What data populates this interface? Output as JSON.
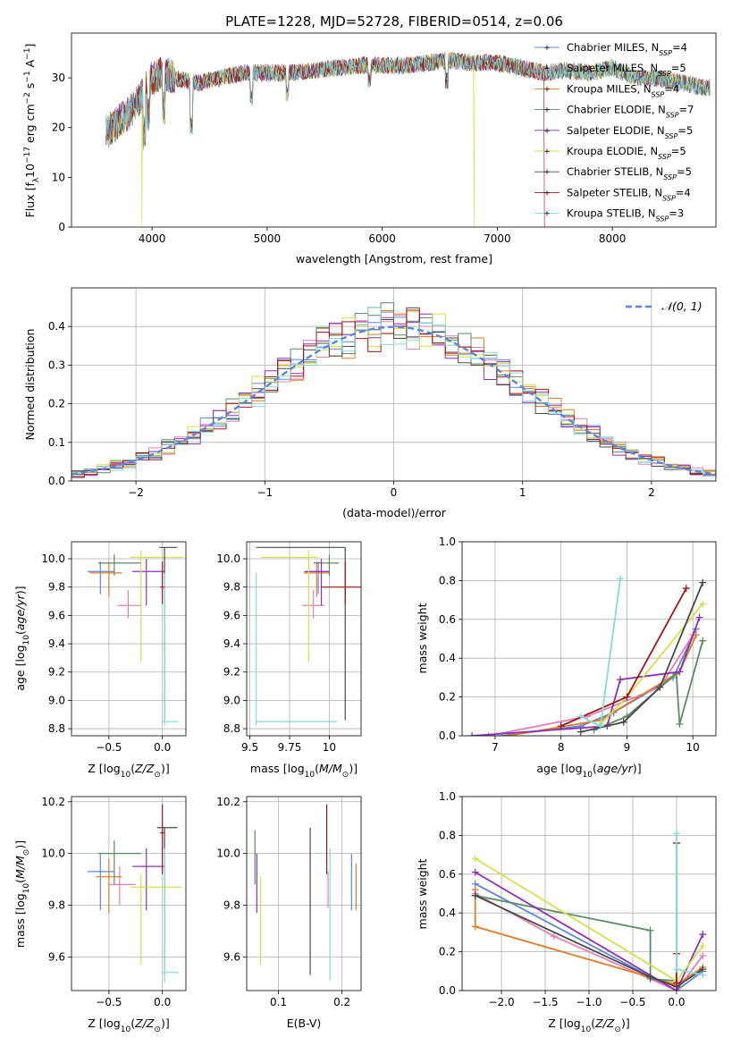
{
  "colors": {
    "Chabrier MILES": "#5b86d9",
    "Salpeter MILES": "#e37fb6",
    "Kroupa MILES": "#e07b26",
    "Chabrier ELODIE": "#5c8a60",
    "Salpeter ELODIE": "#8f2fb5",
    "Kroupa ELODIE": "#d4e04a",
    "Chabrier STELIB": "#4a4a4a",
    "Salpeter STELIB": "#a51414",
    "Kroupa STELIB": "#86dada"
  },
  "chart_data": [
    {
      "id": "spectrum",
      "type": "line",
      "title": "PLATE=1228, MJD=52728, FIBERID=0514, z=0.06",
      "xlabel": "wavelength [Angstrom, rest frame]",
      "ylabel": "Flux [fλ10⁻¹⁷ erg cm⁻² s⁻¹ A⁻¹]",
      "xlim": [
        3300,
        8900
      ],
      "ylim": [
        0,
        39
      ],
      "xticks": [
        4000,
        5000,
        6000,
        7000,
        8000
      ],
      "yticks": [
        0,
        10,
        20,
        30
      ],
      "grid": false,
      "legend_position": "top-right",
      "series": [
        {
          "name": "Chabrier MILES, N",
          "sub": "SSP",
          "tail": "=4"
        },
        {
          "name": "Salpeter MILES, N",
          "sub": "SSP",
          "tail": "=5"
        },
        {
          "name": "Kroupa MILES, N",
          "sub": "SSP",
          "tail": "=4"
        },
        {
          "name": "Chabrier ELODIE, N",
          "sub": "SSP",
          "tail": "=7"
        },
        {
          "name": "Salpeter ELODIE, N",
          "sub": "SSP",
          "tail": "=5"
        },
        {
          "name": "Kroupa ELODIE, N",
          "sub": "SSP",
          "tail": "=5"
        },
        {
          "name": "Chabrier STELIB, N",
          "sub": "SSP",
          "tail": "=5"
        },
        {
          "name": "Salpeter STELIB, N",
          "sub": "SSP",
          "tail": "=4"
        },
        {
          "name": "Kroupa STELIB, N",
          "sub": "SSP",
          "tail": "=3"
        }
      ],
      "continuum": [
        [
          3600,
          19
        ],
        [
          3700,
          21
        ],
        [
          3800,
          23
        ],
        [
          3900,
          26
        ],
        [
          4000,
          30
        ],
        [
          4100,
          31
        ],
        [
          4200,
          30
        ],
        [
          4400,
          29
        ],
        [
          4600,
          30
        ],
        [
          4800,
          31
        ],
        [
          5000,
          31
        ],
        [
          5200,
          31
        ],
        [
          5400,
          31.5
        ],
        [
          5600,
          32
        ],
        [
          5800,
          32.5
        ],
        [
          6000,
          32.5
        ],
        [
          6200,
          32.5
        ],
        [
          6400,
          33
        ],
        [
          6600,
          33.5
        ],
        [
          6800,
          33
        ],
        [
          7000,
          33
        ],
        [
          7200,
          32
        ],
        [
          7400,
          31
        ],
        [
          7600,
          31.5
        ],
        [
          7800,
          31
        ],
        [
          8000,
          32
        ],
        [
          8200,
          30
        ],
        [
          8400,
          30
        ],
        [
          8600,
          29
        ],
        [
          8800,
          28
        ]
      ]
    },
    {
      "id": "residuals",
      "type": "histogram",
      "xlabel": "(data-model)/error",
      "ylabel": "Normed distribution",
      "xlim": [
        -2.5,
        2.5
      ],
      "ylim": [
        0,
        0.5
      ],
      "xticks": [
        -2,
        -1,
        0,
        1,
        2
      ],
      "yticks": [
        0.0,
        0.1,
        0.2,
        0.3,
        0.4
      ],
      "grid": true,
      "legend_position": "top-right",
      "reference_curve": {
        "name": "𝒩(0, 1)",
        "mean": 0,
        "sigma": 1,
        "color": "#5b86d9"
      }
    },
    {
      "id": "age-z",
      "type": "errorbar",
      "xlabel": "Z [log₁₀(Z/Z⊙)]",
      "ylabel": "age  [log₁₀(age/yr)]",
      "xlim": [
        -0.85,
        0.22
      ],
      "ylim": [
        8.75,
        10.12
      ],
      "xticks": [
        -0.5,
        0.0
      ],
      "yticks": [
        8.8,
        9.0,
        9.2,
        9.4,
        9.6,
        9.8,
        10.0
      ],
      "grid": true,
      "points": [
        {
          "c": "Chabrier MILES",
          "x": -0.58,
          "xlo": -0.7,
          "xhi": -0.45,
          "y": 9.91,
          "ylo": 9.75,
          "yhi": 9.98
        },
        {
          "c": "Salpeter MILES",
          "x": -0.32,
          "xlo": -0.42,
          "xhi": -0.2,
          "y": 9.67,
          "ylo": 9.58,
          "yhi": 9.78
        },
        {
          "c": "Kroupa MILES",
          "x": -0.5,
          "xlo": -0.68,
          "xhi": -0.38,
          "y": 9.9,
          "ylo": 9.73,
          "yhi": 9.98
        },
        {
          "c": "Chabrier ELODIE",
          "x": -0.45,
          "xlo": -0.6,
          "xhi": -0.2,
          "y": 9.97,
          "ylo": 9.88,
          "yhi": 10.03
        },
        {
          "c": "Salpeter ELODIE",
          "x": -0.15,
          "xlo": -0.28,
          "xhi": 0.02,
          "y": 9.91,
          "ylo": 9.67,
          "yhi": 10.0
        },
        {
          "c": "Kroupa ELODIE",
          "x": -0.2,
          "xlo": -0.3,
          "xhi": 0.2,
          "y": 10.01,
          "ylo": 9.27,
          "yhi": 10.06
        },
        {
          "c": "Chabrier STELIB",
          "x": 0.02,
          "xlo": -0.03,
          "xhi": 0.14,
          "y": 10.08,
          "ylo": 8.86,
          "yhi": 10.08
        },
        {
          "c": "Salpeter STELIB",
          "x": 0.0,
          "xlo": -0.02,
          "xhi": 0.03,
          "y": 9.8,
          "ylo": 9.68,
          "yhi": 9.98
        },
        {
          "c": "Kroupa STELIB",
          "x": 0.02,
          "xlo": 0.0,
          "xhi": 0.15,
          "y": 8.85,
          "ylo": 8.82,
          "yhi": 9.9
        }
      ]
    },
    {
      "id": "age-mass",
      "type": "errorbar",
      "xlabel": "mass [log₁₀(M/M⊙)]",
      "xlim": [
        9.48,
        10.2
      ],
      "ylim": [
        8.75,
        10.12
      ],
      "xticks": [
        9.5,
        9.75,
        10.0
      ],
      "yticks": [
        8.8,
        9.0,
        9.2,
        9.4,
        9.6,
        9.8,
        10.0
      ],
      "grid": true,
      "points": [
        {
          "c": "Chabrier MILES",
          "x": 9.93,
          "xlo": 9.84,
          "xhi": 10.0,
          "y": 9.91,
          "ylo": 9.75,
          "yhi": 9.98
        },
        {
          "c": "Salpeter MILES",
          "x": 9.9,
          "xlo": 9.83,
          "xhi": 9.97,
          "y": 9.67,
          "ylo": 9.58,
          "yhi": 9.78
        },
        {
          "c": "Kroupa MILES",
          "x": 9.92,
          "xlo": 9.84,
          "xhi": 10.0,
          "y": 9.9,
          "ylo": 9.73,
          "yhi": 9.98
        },
        {
          "c": "Chabrier ELODIE",
          "x": 10.0,
          "xlo": 9.9,
          "xhi": 10.06,
          "y": 9.97,
          "ylo": 9.88,
          "yhi": 10.03
        },
        {
          "c": "Salpeter ELODIE",
          "x": 9.95,
          "xlo": 9.85,
          "xhi": 10.0,
          "y": 9.91,
          "ylo": 9.67,
          "yhi": 10.0
        },
        {
          "c": "Kroupa ELODIE",
          "x": 9.87,
          "xlo": 9.57,
          "xhi": 9.93,
          "y": 10.01,
          "ylo": 9.27,
          "yhi": 10.06
        },
        {
          "c": "Chabrier STELIB",
          "x": 10.1,
          "xlo": 9.54,
          "xhi": 10.1,
          "y": 10.08,
          "ylo": 8.86,
          "yhi": 10.08
        },
        {
          "c": "Salpeter STELIB",
          "x": 10.1,
          "xlo": 9.95,
          "xhi": 10.2,
          "y": 9.8,
          "ylo": 9.68,
          "yhi": 9.98
        },
        {
          "c": "Kroupa STELIB",
          "x": 9.54,
          "xlo": 9.54,
          "xhi": 10.05,
          "y": 8.85,
          "ylo": 8.82,
          "yhi": 9.9
        }
      ]
    },
    {
      "id": "weight-age",
      "type": "line",
      "xlabel": "age  [log₁₀(age/yr)]",
      "ylabel": "mass weight",
      "xlim": [
        6.5,
        10.35
      ],
      "ylim": [
        0,
        1.0
      ],
      "xticks": [
        7,
        8,
        9,
        10
      ],
      "yticks": [
        0.0,
        0.2,
        0.4,
        0.6,
        0.8,
        1.0
      ],
      "grid": true,
      "series": [
        {
          "c": "Chabrier MILES",
          "points": [
            [
              7.1,
              0.0
            ],
            [
              8.3,
              0.05
            ],
            [
              8.8,
              0.12
            ],
            [
              9.7,
              0.3
            ],
            [
              10.05,
              0.55
            ]
          ]
        },
        {
          "c": "Salpeter MILES",
          "points": [
            [
              6.9,
              0.0
            ],
            [
              8.4,
              0.1
            ],
            [
              9.5,
              0.25
            ],
            [
              10.0,
              0.52
            ]
          ]
        },
        {
          "c": "Kroupa MILES",
          "points": [
            [
              7.2,
              0.0
            ],
            [
              8.6,
              0.08
            ],
            [
              9.8,
              0.33
            ],
            [
              10.05,
              0.52
            ]
          ]
        },
        {
          "c": "Chabrier ELODIE",
          "points": [
            [
              8.5,
              0.03
            ],
            [
              9.0,
              0.1
            ],
            [
              9.75,
              0.32
            ],
            [
              9.8,
              0.06
            ],
            [
              10.15,
              0.49
            ]
          ]
        },
        {
          "c": "Salpeter ELODIE",
          "points": [
            [
              6.65,
              0.0
            ],
            [
              8.7,
              0.05
            ],
            [
              8.9,
              0.29
            ],
            [
              9.8,
              0.33
            ],
            [
              10.1,
              0.61
            ]
          ]
        },
        {
          "c": "Kroupa ELODIE",
          "points": [
            [
              8.6,
              0.06
            ],
            [
              9.0,
              0.2
            ],
            [
              10.15,
              0.68
            ]
          ]
        },
        {
          "c": "Chabrier STELIB",
          "points": [
            [
              8.3,
              0.02
            ],
            [
              8.95,
              0.07
            ],
            [
              9.5,
              0.25
            ],
            [
              10.15,
              0.79
            ]
          ]
        },
        {
          "c": "Salpeter STELIB",
          "points": [
            [
              8.0,
              0.05
            ],
            [
              9.0,
              0.2
            ],
            [
              9.9,
              0.76
            ]
          ]
        },
        {
          "c": "Kroupa STELIB",
          "points": [
            [
              8.3,
              0.1
            ],
            [
              8.6,
              0.05
            ],
            [
              8.9,
              0.81
            ]
          ]
        }
      ]
    },
    {
      "id": "mass-z",
      "type": "errorbar",
      "xlabel": "Z [log₁₀(Z/Z⊙)]",
      "ylabel": "mass [log₁₀(M/M⊙)]",
      "xlim": [
        -0.85,
        0.22
      ],
      "ylim": [
        9.47,
        10.22
      ],
      "xticks": [
        -0.5,
        0.0
      ],
      "yticks": [
        9.6,
        9.8,
        10.0,
        10.2
      ],
      "grid": true,
      "points": [
        {
          "c": "Chabrier MILES",
          "x": -0.58,
          "xlo": -0.7,
          "xhi": -0.45,
          "y": 9.93,
          "ylo": 9.78,
          "yhi": 10.0
        },
        {
          "c": "Salpeter MILES",
          "x": -0.4,
          "xlo": -0.5,
          "xhi": -0.25,
          "y": 9.88,
          "ylo": 9.8,
          "yhi": 9.95
        },
        {
          "c": "Kroupa MILES",
          "x": -0.5,
          "xlo": -0.62,
          "xhi": -0.38,
          "y": 9.91,
          "ylo": 9.77,
          "yhi": 9.98
        },
        {
          "c": "Chabrier ELODIE",
          "x": -0.45,
          "xlo": -0.6,
          "xhi": -0.2,
          "y": 10.0,
          "ylo": 9.88,
          "yhi": 10.05
        },
        {
          "c": "Salpeter ELODIE",
          "x": -0.15,
          "xlo": -0.28,
          "xhi": 0.02,
          "y": 9.95,
          "ylo": 9.78,
          "yhi": 10.02
        },
        {
          "c": "Kroupa ELODIE",
          "x": -0.2,
          "xlo": -0.3,
          "xhi": 0.18,
          "y": 9.87,
          "ylo": 9.57,
          "yhi": 9.92
        },
        {
          "c": "Chabrier STELIB",
          "x": 0.02,
          "xlo": -0.05,
          "xhi": 0.14,
          "y": 10.1,
          "ylo": 9.53,
          "yhi": 10.1
        },
        {
          "c": "Salpeter STELIB",
          "x": 0.0,
          "xlo": -0.02,
          "xhi": 0.02,
          "y": 10.08,
          "ylo": 9.92,
          "yhi": 10.19
        },
        {
          "c": "Kroupa STELIB",
          "x": 0.02,
          "xlo": 0.0,
          "xhi": 0.15,
          "y": 9.54,
          "ylo": 9.5,
          "yhi": 10.02
        }
      ]
    },
    {
      "id": "mass-ebv",
      "type": "errorbar",
      "xlabel": "E(B-V)",
      "xlim": [
        0.05,
        0.23
      ],
      "ylim": [
        9.47,
        10.22
      ],
      "xticks": [
        0.1,
        0.2
      ],
      "yticks": [
        9.6,
        9.8,
        10.0,
        10.2
      ],
      "grid": true,
      "points": [
        {
          "c": "Chabrier MILES",
          "x": 0.215,
          "y": 9.93,
          "ylo": 9.78,
          "yhi": 10.0
        },
        {
          "c": "Salpeter MILES",
          "x": 0.178,
          "y": 9.88,
          "ylo": 9.79,
          "yhi": 9.93
        },
        {
          "c": "Kroupa MILES",
          "x": 0.222,
          "y": 9.91,
          "ylo": 9.78,
          "yhi": 9.96
        },
        {
          "c": "Chabrier ELODIE",
          "x": 0.063,
          "y": 10.0,
          "ylo": 9.88,
          "yhi": 10.09
        },
        {
          "c": "Salpeter ELODIE",
          "x": 0.066,
          "y": 9.95,
          "ylo": 9.77,
          "yhi": 10.0
        },
        {
          "c": "Kroupa ELODIE",
          "x": 0.072,
          "y": 9.87,
          "ylo": 9.57,
          "yhi": 9.91
        },
        {
          "c": "Chabrier STELIB",
          "x": 0.15,
          "y": 10.1,
          "ylo": 9.53,
          "yhi": 10.1
        },
        {
          "c": "Salpeter STELIB",
          "x": 0.176,
          "y": 10.08,
          "ylo": 9.92,
          "yhi": 10.19
        },
        {
          "c": "Kroupa STELIB",
          "x": 0.181,
          "y": 9.54,
          "ylo": 9.51,
          "yhi": 10.02
        }
      ]
    },
    {
      "id": "weight-z",
      "type": "line",
      "xlabel": "Z [log₁₀(Z/Z⊙)]",
      "ylabel": "mass weight",
      "xlim": [
        -2.45,
        0.45
      ],
      "ylim": [
        0,
        1.0
      ],
      "xticks": [
        -2.0,
        -1.5,
        -1.0,
        -0.5,
        0.0
      ],
      "yticks": [
        0.0,
        0.2,
        0.4,
        0.6,
        0.8,
        1.0
      ],
      "grid": true,
      "series": [
        {
          "c": "Chabrier MILES",
          "points": [
            [
              -2.3,
              0.55
            ],
            [
              0.0,
              0.0
            ],
            [
              0.3,
              0.1
            ]
          ]
        },
        {
          "c": "Salpeter MILES",
          "points": [
            [
              -2.3,
              0.5
            ],
            [
              -1.4,
              0.28
            ],
            [
              0.0,
              0.0
            ],
            [
              0.3,
              0.18
            ]
          ]
        },
        {
          "c": "Kroupa MILES",
          "points": [
            [
              -2.3,
              0.52
            ],
            [
              -2.3,
              0.33
            ],
            [
              0.0,
              0.03
            ],
            [
              0.3,
              0.12
            ]
          ]
        },
        {
          "c": "Chabrier ELODIE",
          "points": [
            [
              -2.3,
              0.49
            ],
            [
              -0.3,
              0.31
            ],
            [
              -0.3,
              0.06
            ],
            [
              0.0,
              0.05
            ]
          ]
        },
        {
          "c": "Salpeter ELODIE",
          "points": [
            [
              -2.3,
              0.61
            ],
            [
              0.0,
              0.0
            ],
            [
              0.3,
              0.29
            ]
          ]
        },
        {
          "c": "Kroupa ELODIE",
          "points": [
            [
              -2.3,
              0.68
            ],
            [
              0.0,
              0.05
            ],
            [
              0.3,
              0.23
            ]
          ]
        },
        {
          "c": "Chabrier STELIB",
          "points": [
            [
              -2.3,
              0.49
            ],
            [
              -0.3,
              0.07
            ],
            [
              0.0,
              0.02
            ],
            [
              0.3,
              0.11
            ]
          ]
        },
        {
          "c": "Salpeter STELIB",
          "points": [
            [
              0.0,
              0.76
            ],
            [
              0.0,
              0.19
            ],
            [
              0.0,
              0.04
            ]
          ]
        },
        {
          "c": "Kroupa STELIB",
          "points": [
            [
              0.0,
              0.81
            ],
            [
              0.0,
              0.11
            ],
            [
              0.3,
              0.08
            ]
          ]
        }
      ]
    }
  ]
}
